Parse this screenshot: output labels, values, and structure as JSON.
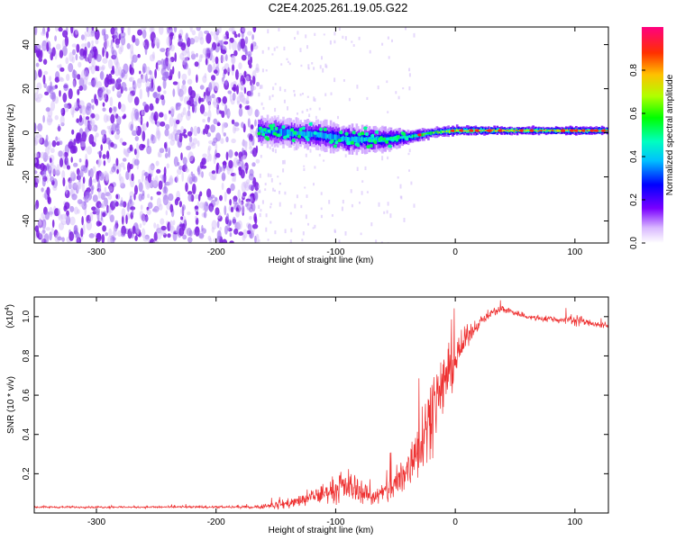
{
  "title": "C2E4.2025.261.19.05.G22",
  "colors": {
    "snr_line": "#ee3030",
    "frame": "#000000",
    "noise_base": "#7a1ee0"
  },
  "chart_data": [
    {
      "type": "heatmap",
      "name": "spectrogram",
      "xlabel": "Height of straight line (km)",
      "ylabel": "Frequency (Hz)",
      "xlim": [
        -352,
        128
      ],
      "ylim": [
        -50,
        48
      ],
      "xticks": [
        -300,
        -200,
        -100,
        0,
        100
      ],
      "yticks": [
        -40,
        -20,
        0,
        20,
        40
      ],
      "xtick_labels": [
        "-300",
        "-200",
        "-100",
        "0",
        "100"
      ],
      "ytick_labels": [
        "-40",
        "-20",
        "0",
        "20",
        "40"
      ],
      "noise_region": {
        "x_from": -352,
        "x_to": -165
      },
      "signal_band": [
        {
          "x": -165,
          "center": 1,
          "halfwidth": 6,
          "amplitude": 0.35
        },
        {
          "x": -140,
          "center": 0,
          "halfwidth": 6,
          "amplitude": 0.35
        },
        {
          "x": -115,
          "center": -1,
          "halfwidth": 6,
          "amplitude": 0.38
        },
        {
          "x": -90,
          "center": -3,
          "halfwidth": 6,
          "amplitude": 0.4
        },
        {
          "x": -60,
          "center": -3,
          "halfwidth": 5,
          "amplitude": 0.42
        },
        {
          "x": -40,
          "center": -2,
          "halfwidth": 3,
          "amplitude": 0.5
        },
        {
          "x": -20,
          "center": 0,
          "halfwidth": 2,
          "amplitude": 0.6
        },
        {
          "x": 0,
          "center": 1,
          "halfwidth": 2,
          "amplitude": 0.72
        },
        {
          "x": 40,
          "center": 1,
          "halfwidth": 1.6,
          "amplitude": 0.75
        },
        {
          "x": 80,
          "center": 1,
          "halfwidth": 1.6,
          "amplitude": 0.78
        },
        {
          "x": 128,
          "center": 1,
          "halfwidth": 1.6,
          "amplitude": 0.75
        }
      ],
      "colorbar": {
        "label": "Normalized spectral amplitude",
        "range": [
          0,
          1
        ],
        "ticks": [
          0.0,
          0.2,
          0.4,
          0.6,
          0.8
        ],
        "tick_labels": [
          "0.0",
          "0.2",
          "0.4",
          "0.6",
          "0.8"
        ]
      }
    },
    {
      "type": "line",
      "name": "snr",
      "xlabel": "Height of straight line (km)",
      "ylabel": "SNR (10 * v/v)",
      "exponent_label": "(x10",
      "exponent_power": "4",
      "exponent_close": ")",
      "xlim": [
        -352,
        128
      ],
      "ylim": [
        0,
        1.1
      ],
      "xticks": [
        -300,
        -200,
        -100,
        0,
        100
      ],
      "yticks": [
        0.2,
        0.4,
        0.6,
        0.8,
        1.0
      ],
      "xtick_labels": [
        "-300",
        "-200",
        "-100",
        "0",
        "100"
      ],
      "ytick_labels": [
        "0.2",
        "0.4",
        "0.6",
        "0.8",
        "1.0"
      ],
      "envelope": {
        "x": [
          -352,
          -250,
          -170,
          -150,
          -130,
          -110,
          -100,
          -90,
          -80,
          -70,
          -60,
          -50,
          -40,
          -30,
          -20,
          -10,
          0,
          10,
          20,
          30,
          40,
          50,
          60,
          70,
          80,
          90,
          100,
          110,
          128
        ],
        "mean": [
          0.03,
          0.03,
          0.03,
          0.04,
          0.06,
          0.1,
          0.12,
          0.14,
          0.12,
          0.08,
          0.1,
          0.14,
          0.22,
          0.36,
          0.52,
          0.66,
          0.78,
          0.9,
          0.97,
          1.02,
          1.04,
          1.02,
          1.0,
          0.99,
          0.99,
          0.98,
          0.99,
          0.97,
          0.95
        ],
        "spread": [
          0.008,
          0.008,
          0.01,
          0.03,
          0.05,
          0.08,
          0.1,
          0.12,
          0.1,
          0.06,
          0.08,
          0.14,
          0.2,
          0.26,
          0.28,
          0.24,
          0.16,
          0.08,
          0.04,
          0.03,
          0.03,
          0.025,
          0.025,
          0.025,
          0.025,
          0.025,
          0.05,
          0.025,
          0.025
        ]
      }
    }
  ]
}
